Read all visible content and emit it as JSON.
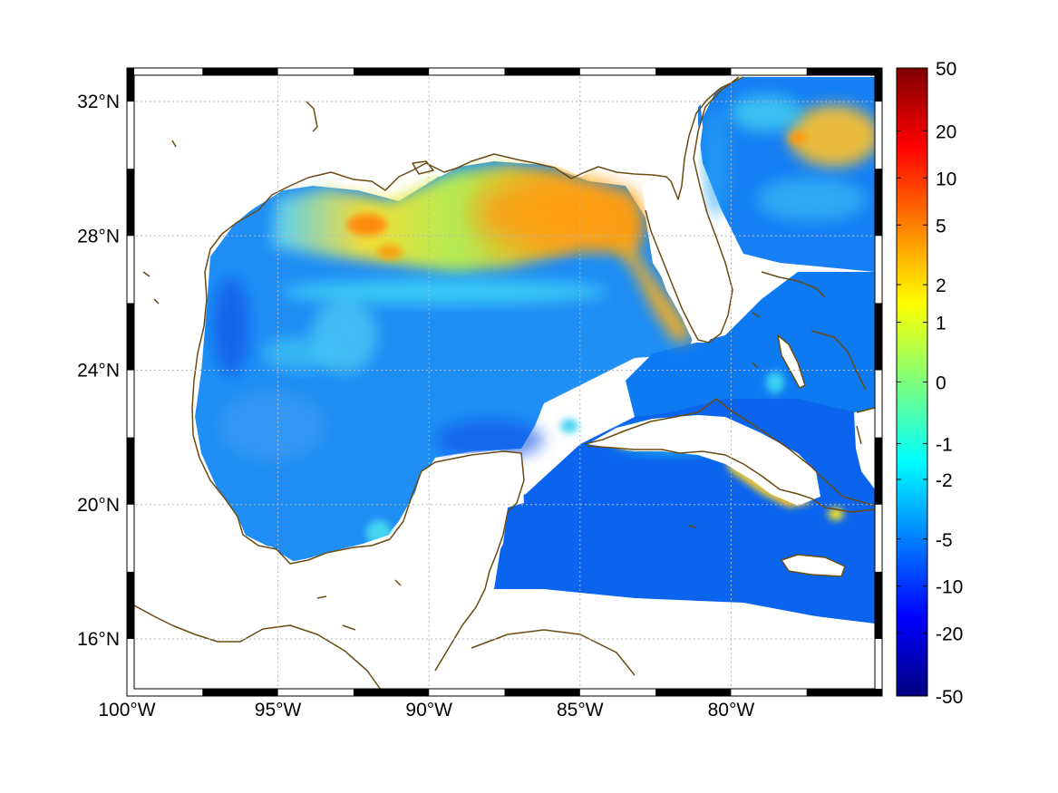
{
  "map": {
    "type": "geographic-heatmap",
    "region": "Gulf of Mexico and Caribbean",
    "lon_range": [
      -100,
      -75
    ],
    "lat_range": [
      14.3,
      33
    ],
    "grid": true,
    "grid_style": "dotted",
    "frame_style": "black-and-white-checkered",
    "colors": {
      "coastline": "#6b4a12",
      "land": "#ffffff",
      "grid": "#b8b8b8",
      "frame_dark": "#000000",
      "frame_light": "#ffffff"
    },
    "x_ticks": [
      {
        "lon": -100,
        "label": "100°W"
      },
      {
        "lon": -95,
        "label": "95°W"
      },
      {
        "lon": -90,
        "label": "90°W"
      },
      {
        "lon": -85,
        "label": "85°W"
      },
      {
        "lon": -80,
        "label": "80°W"
      }
    ],
    "y_ticks": [
      {
        "lat": 32,
        "label": "32°N"
      },
      {
        "lat": 28,
        "label": "28°N"
      },
      {
        "lat": 24,
        "label": "24°N"
      },
      {
        "lat": 20,
        "label": "20°N"
      },
      {
        "lat": 16,
        "label": "16°N"
      }
    ]
  },
  "colorbar": {
    "colormap": "jet",
    "scale": "nonlinear",
    "placement": "right",
    "ticks": [
      {
        "value": 50,
        "label": "50"
      },
      {
        "value": 20,
        "label": "20"
      },
      {
        "value": 10,
        "label": "10"
      },
      {
        "value": 5,
        "label": "5"
      },
      {
        "value": 2,
        "label": "2"
      },
      {
        "value": 1,
        "label": "1"
      },
      {
        "value": 0,
        "label": "0"
      },
      {
        "value": -1,
        "label": "-1"
      },
      {
        "value": -2,
        "label": "-2"
      },
      {
        "value": -5,
        "label": "-5"
      },
      {
        "value": -10,
        "label": "-10"
      },
      {
        "value": -20,
        "label": "-20"
      },
      {
        "value": -50,
        "label": "-50"
      }
    ]
  }
}
